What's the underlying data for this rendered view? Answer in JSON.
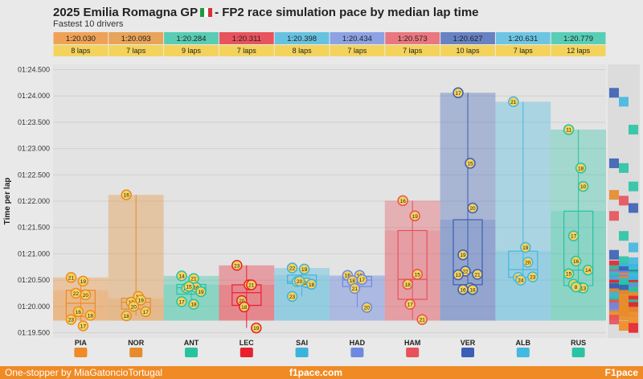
{
  "header": {
    "title_left": "2025 Emilia Romagna GP",
    "title_right": "- FP2 race simulation pace by median lap time",
    "subtitle": "Fastest 10 drivers"
  },
  "footer": {
    "left": "One-stopper by MiaGatoncioTortugal",
    "center": "f1pace.com",
    "right": "F1pace"
  },
  "chart_data": {
    "type": "box",
    "title": "2025 Emilia Romagna GP - FP2 race simulation pace by median lap time",
    "subtitle": "Fastest 10 drivers",
    "ylabel": "Time per lap",
    "ylim": [
      79.4,
      84.6
    ],
    "yticks": [
      {
        "v": 79.5,
        "label": "01:19.500"
      },
      {
        "v": 80.0,
        "label": "01:20.000"
      },
      {
        "v": 80.5,
        "label": "01:20.500"
      },
      {
        "v": 81.0,
        "label": "01:21.000"
      },
      {
        "v": 81.5,
        "label": "01:21.500"
      },
      {
        "v": 82.0,
        "label": "01:22.000"
      },
      {
        "v": 82.5,
        "label": "01:22.500"
      },
      {
        "v": 83.0,
        "label": "01:23.000"
      },
      {
        "v": 83.5,
        "label": "01:23.500"
      },
      {
        "v": 84.0,
        "label": "01:24.000"
      },
      {
        "v": 84.5,
        "label": "01:24.500"
      }
    ],
    "drivers": [
      {
        "code": "PIA",
        "median": "1:20.030",
        "laps": "8 laps",
        "color": "#f08a24",
        "team": "mclaren-logo",
        "points": [
          {
            "lap": 21,
            "t": 80.55
          },
          {
            "lap": 19,
            "t": 80.48
          },
          {
            "lap": 20,
            "t": 80.22
          },
          {
            "lap": 22,
            "t": 80.25
          },
          {
            "lap": 16,
            "t": 79.9
          },
          {
            "lap": 18,
            "t": 79.83
          },
          {
            "lap": 23,
            "t": 79.75
          },
          {
            "lap": 17,
            "t": 79.63
          }
        ]
      },
      {
        "code": "NOR",
        "median": "1:20.093",
        "laps": "7 laps",
        "color": "#e68c2a",
        "team": "mclaren-logo",
        "points": [
          {
            "lap": 16,
            "t": 82.12
          },
          {
            "lap": 14,
            "t": 80.19
          },
          {
            "lap": 19,
            "t": 80.12
          },
          {
            "lap": 15,
            "t": 80.08
          },
          {
            "lap": 20,
            "t": 80.0
          },
          {
            "lap": 17,
            "t": 79.9
          },
          {
            "lap": 18,
            "t": 79.82
          }
        ]
      },
      {
        "code": "ANT",
        "median": "1:20.284",
        "laps": "9 laps",
        "color": "#27c3a0",
        "team": "mercedes-logo",
        "points": [
          {
            "lap": 14,
            "t": 80.58
          },
          {
            "lap": 21,
            "t": 80.53
          },
          {
            "lap": 16,
            "t": 80.36
          },
          {
            "lap": 20,
            "t": 80.35
          },
          {
            "lap": 15,
            "t": 80.38
          },
          {
            "lap": 19,
            "t": 80.28
          },
          {
            "lap": 17,
            "t": 80.09
          },
          {
            "lap": 18,
            "t": 80.04
          }
        ]
      },
      {
        "code": "LEC",
        "median": "1:20.311",
        "laps": "7 laps",
        "color": "#e8202e",
        "team": "ferrari-logo",
        "points": [
          {
            "lap": 23,
            "t": 80.78
          },
          {
            "lap": 17,
            "t": 80.41
          },
          {
            "lap": 21,
            "t": 80.41
          },
          {
            "lap": 20,
            "t": 80.11
          },
          {
            "lap": 18,
            "t": 79.99
          },
          {
            "lap": 19,
            "t": 79.59
          }
        ]
      },
      {
        "code": "SAI",
        "median": "1:20.398",
        "laps": "8 laps",
        "color": "#3bb4dc",
        "team": "williams-logo",
        "points": [
          {
            "lap": 22,
            "t": 80.73
          },
          {
            "lap": 19,
            "t": 80.71
          },
          {
            "lap": 21,
            "t": 80.45
          },
          {
            "lap": 17,
            "t": 80.47
          },
          {
            "lap": 20,
            "t": 80.48
          },
          {
            "lap": 18,
            "t": 80.42
          },
          {
            "lap": 23,
            "t": 80.19
          }
        ]
      },
      {
        "code": "HAD",
        "median": "1:20.434",
        "laps": "7 laps",
        "color": "#6e8ae0",
        "team": "racing-bulls-logo",
        "points": [
          {
            "lap": 16,
            "t": 80.59
          },
          {
            "lap": 19,
            "t": 80.59
          },
          {
            "lap": 17,
            "t": 80.51
          },
          {
            "lap": 18,
            "t": 80.49
          },
          {
            "lap": 21,
            "t": 80.34
          },
          {
            "lap": 20,
            "t": 79.98
          }
        ]
      },
      {
        "code": "HAM",
        "median": "1:20.573",
        "laps": "7 laps",
        "color": "#e8505b",
        "team": "ferrari-logo",
        "points": [
          {
            "lap": 16,
            "t": 82.01
          },
          {
            "lap": 19,
            "t": 81.72
          },
          {
            "lap": 15,
            "t": 80.61
          },
          {
            "lap": 18,
            "t": 80.42
          },
          {
            "lap": 17,
            "t": 80.04
          },
          {
            "lap": 21,
            "t": 79.75
          }
        ]
      },
      {
        "code": "VER",
        "median": "1:20.627",
        "laps": "10 laps",
        "color": "#3a5fb5",
        "team": "red-bull-logo",
        "points": [
          {
            "lap": 17,
            "t": 84.06
          },
          {
            "lap": 15,
            "t": 82.72
          },
          {
            "lap": 20,
            "t": 81.87
          },
          {
            "lap": 19,
            "t": 80.98
          },
          {
            "lap": 22,
            "t": 80.67
          },
          {
            "lap": 21,
            "t": 80.61
          },
          {
            "lap": 13,
            "t": 80.6
          },
          {
            "lap": 14,
            "t": 80.35
          },
          {
            "lap": 18,
            "t": 80.32
          },
          {
            "lap": 16,
            "t": 80.32
          }
        ]
      },
      {
        "code": "ALB",
        "median": "1:20.631",
        "laps": "7 laps",
        "color": "#43b8e0",
        "team": "williams-logo",
        "points": [
          {
            "lap": 21,
            "t": 83.89
          },
          {
            "lap": 19,
            "t": 81.12
          },
          {
            "lap": 20,
            "t": 80.84
          },
          {
            "lap": 22,
            "t": 80.55
          },
          {
            "lap": 24,
            "t": 80.5
          },
          {
            "lap": 23,
            "t": 80.56
          }
        ]
      },
      {
        "code": "RUS",
        "median": "1:20.779",
        "laps": "12 laps",
        "color": "#28c4a4",
        "team": "mercedes-logo",
        "points": [
          {
            "lap": 11,
            "t": 83.36
          },
          {
            "lap": 18,
            "t": 82.63
          },
          {
            "lap": 10,
            "t": 82.28
          },
          {
            "lap": 17,
            "t": 81.34
          },
          {
            "lap": 16,
            "t": 80.86
          },
          {
            "lap": 14,
            "t": 80.69
          },
          {
            "lap": 15,
            "t": 80.62
          },
          {
            "lap": 12,
            "t": 80.36
          },
          {
            "lap": 13,
            "t": 80.35
          },
          {
            "lap": 9,
            "t": 80.42
          },
          {
            "lap": 8,
            "t": 80.37
          }
        ]
      }
    ]
  }
}
